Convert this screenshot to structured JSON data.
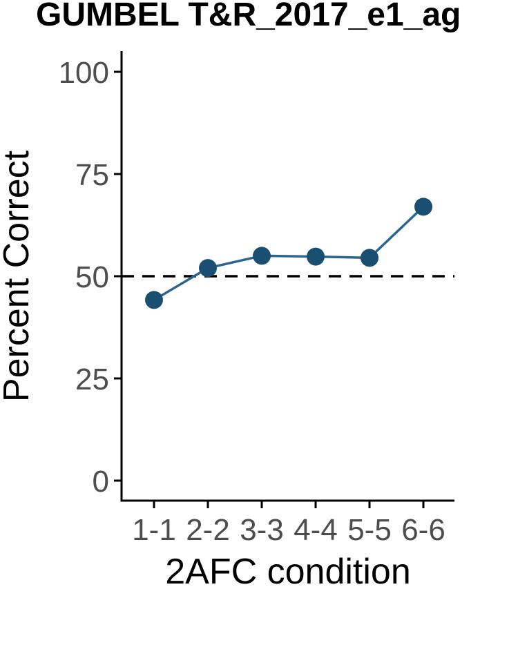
{
  "chart_data": {
    "type": "line",
    "title": "GUMBEL T&R_2017_e1_ag",
    "xlabel": "2AFC condition",
    "ylabel": "Percent Correct",
    "categories": [
      "1-1",
      "2-2",
      "3-3",
      "4-4",
      "5-5",
      "6-6"
    ],
    "values": [
      44.2,
      52.0,
      55.0,
      54.8,
      54.5,
      67.0
    ],
    "ylim": [
      0,
      100
    ],
    "yticks": [
      "0",
      "25",
      "50",
      "75",
      "100"
    ],
    "reference_line": {
      "y": 50,
      "style": "dashed"
    },
    "grid": false,
    "legend": "none",
    "colors": {
      "series": "#1b4f72",
      "line": "#2a6592",
      "reference": "#000000",
      "tick_text": "#4d4d4d"
    }
  }
}
